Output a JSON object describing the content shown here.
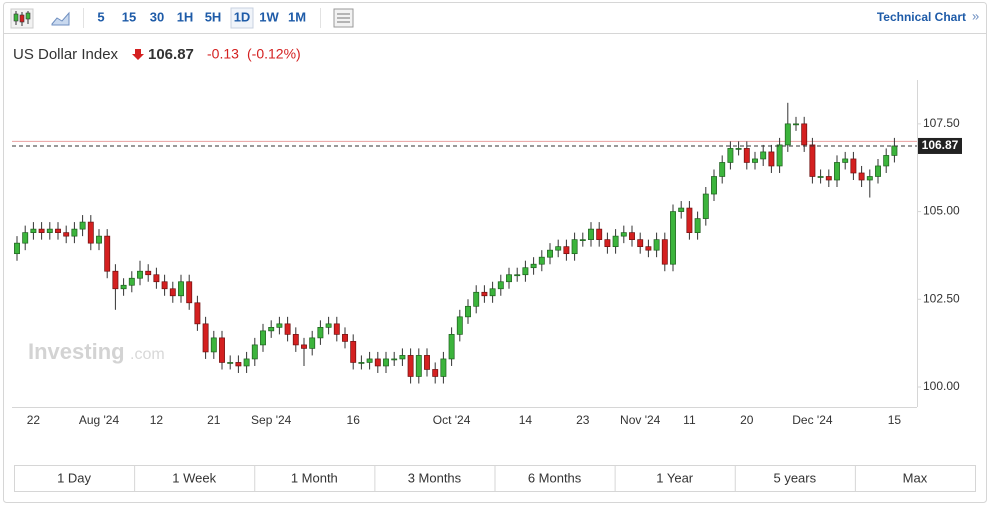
{
  "toolbar": {
    "intervals": [
      "5",
      "15",
      "30",
      "1H",
      "5H",
      "1D",
      "1W",
      "1M"
    ],
    "active": "1D",
    "link": "Technical Chart",
    "link_arrow": "»"
  },
  "quote": {
    "name": "US Dollar Index",
    "price": "106.87",
    "change": "-0.13",
    "change_pct": "(-0.12%)"
  },
  "watermark": {
    "brand": "Investing",
    "suffix": ".com"
  },
  "ranges": [
    "1 Day",
    "1 Week",
    "1 Month",
    "3 Months",
    "6 Months",
    "1 Year",
    "5 years",
    "Max"
  ],
  "chart_data": {
    "type": "candlestick",
    "up_color": "#3cb43c",
    "down_color": "#d42020",
    "last_price": 106.87,
    "reference_line": 107.0,
    "reference_color": "#e8a0a0",
    "ylim": [
      99.43,
      108.75
    ],
    "yticks": [
      {
        "value": 100,
        "label": "100.00"
      },
      {
        "value": 102.5,
        "label": "102.50"
      },
      {
        "value": 105,
        "label": "105.00"
      },
      {
        "value": 107.5,
        "label": "107.50"
      }
    ],
    "categories": [
      null,
      null,
      "22",
      null,
      null,
      null,
      null,
      null,
      null,
      null,
      "Aug '24",
      null,
      null,
      null,
      null,
      null,
      null,
      "12",
      null,
      null,
      null,
      null,
      null,
      null,
      "21",
      null,
      null,
      null,
      null,
      null,
      null,
      "Sep '24",
      null,
      null,
      null,
      null,
      null,
      null,
      null,
      null,
      null,
      "16",
      null,
      null,
      null,
      null,
      null,
      null,
      null,
      null,
      null,
      null,
      null,
      "Oct '24",
      null,
      null,
      null,
      null,
      null,
      null,
      null,
      null,
      "14",
      null,
      null,
      null,
      null,
      null,
      null,
      "23",
      null,
      null,
      null,
      null,
      null,
      null,
      "Nov '24",
      null,
      null,
      null,
      null,
      null,
      "11",
      null,
      null,
      null,
      null,
      null,
      null,
      "20",
      null,
      null,
      null,
      null,
      null,
      null,
      null,
      "Dec '24",
      null,
      null,
      null,
      null,
      null,
      null,
      null,
      null,
      null,
      "15"
    ],
    "open": [
      103.8,
      104.1,
      104.4,
      104.5,
      104.4,
      104.5,
      104.4,
      104.3,
      104.5,
      104.7,
      104.1,
      104.3,
      103.3,
      102.8,
      102.9,
      103.1,
      103.3,
      103.2,
      103.0,
      102.8,
      102.6,
      103.0,
      102.4,
      101.8,
      101.0,
      101.4,
      100.7,
      100.7,
      100.6,
      100.8,
      101.2,
      101.6,
      101.7,
      101.8,
      101.5,
      101.2,
      101.1,
      101.4,
      101.7,
      101.8,
      101.5,
      101.3,
      100.7,
      100.7,
      100.8,
      100.6,
      100.8,
      100.8,
      100.9,
      100.3,
      100.9,
      100.5,
      100.3,
      100.8,
      101.5,
      102.0,
      102.3,
      102.7,
      102.6,
      102.8,
      103.0,
      103.2,
      103.2,
      103.4,
      103.5,
      103.7,
      103.9,
      104.0,
      103.8,
      104.2,
      104.2,
      104.5,
      104.2,
      104.0,
      104.3,
      104.4,
      104.2,
      104.0,
      103.9,
      104.2,
      103.5,
      105.0,
      105.1,
      104.4,
      104.8,
      105.5,
      106.0,
      106.4,
      106.8,
      106.8,
      106.4,
      106.5,
      106.7,
      106.3,
      106.9,
      107.5,
      107.5,
      106.9,
      106.0,
      106.0,
      105.9,
      106.4,
      106.5,
      106.1,
      105.9,
      106.0,
      106.3,
      106.6
    ],
    "high": [
      104.3,
      104.6,
      104.7,
      104.7,
      104.7,
      104.7,
      104.6,
      104.7,
      104.9,
      104.9,
      104.5,
      104.5,
      103.5,
      103.1,
      103.3,
      103.6,
      103.5,
      103.4,
      103.2,
      103.0,
      103.2,
      103.2,
      102.6,
      102.0,
      101.6,
      101.6,
      100.9,
      100.9,
      101.0,
      101.4,
      101.8,
      101.9,
      102.0,
      102.0,
      101.7,
      101.4,
      101.6,
      101.9,
      102.0,
      102.0,
      101.7,
      101.5,
      100.9,
      101.0,
      101.0,
      101.0,
      101.0,
      101.1,
      101.1,
      101.1,
      101.1,
      100.7,
      101.0,
      101.7,
      102.2,
      102.5,
      102.9,
      102.9,
      103.0,
      103.2,
      103.4,
      103.4,
      103.6,
      103.7,
      103.9,
      104.1,
      104.2,
      104.2,
      104.4,
      104.4,
      104.7,
      104.7,
      104.4,
      104.5,
      104.6,
      104.6,
      104.4,
      104.2,
      104.4,
      104.4,
      105.2,
      105.3,
      105.3,
      105.0,
      105.7,
      106.2,
      106.6,
      107.0,
      107.0,
      107.0,
      106.7,
      106.9,
      106.9,
      107.1,
      108.1,
      107.7,
      107.7,
      107.1,
      106.2,
      106.2,
      106.6,
      106.7,
      106.7,
      106.3,
      106.2,
      106.5,
      106.8,
      107.1
    ],
    "low": [
      103.6,
      103.9,
      104.2,
      104.2,
      104.2,
      104.2,
      104.1,
      104.1,
      104.3,
      103.9,
      103.9,
      103.1,
      102.2,
      102.6,
      102.7,
      102.9,
      103.0,
      102.8,
      102.6,
      102.4,
      102.4,
      102.2,
      101.6,
      100.8,
      100.8,
      100.5,
      100.5,
      100.4,
      100.4,
      100.6,
      101.0,
      101.4,
      101.5,
      101.3,
      101.0,
      100.6,
      100.9,
      101.2,
      101.5,
      101.3,
      101.1,
      100.5,
      100.5,
      100.5,
      100.4,
      100.4,
      100.6,
      100.6,
      100.1,
      100.1,
      100.3,
      100.1,
      100.1,
      100.6,
      101.3,
      101.8,
      102.1,
      102.4,
      102.4,
      102.6,
      102.8,
      103.0,
      103.0,
      103.2,
      103.3,
      103.5,
      103.7,
      103.6,
      103.6,
      104.0,
      104.0,
      104.0,
      103.8,
      103.8,
      104.1,
      104.0,
      103.8,
      103.7,
      103.7,
      103.3,
      103.3,
      104.8,
      104.2,
      104.2,
      104.6,
      105.3,
      105.8,
      106.2,
      106.6,
      106.2,
      106.2,
      106.3,
      106.1,
      106.1,
      106.7,
      107.3,
      106.7,
      105.8,
      105.8,
      105.7,
      105.7,
      106.2,
      105.9,
      105.7,
      105.4,
      105.8,
      106.1,
      106.4
    ],
    "close": [
      104.1,
      104.4,
      104.5,
      104.4,
      104.5,
      104.4,
      104.3,
      104.5,
      104.7,
      104.1,
      104.3,
      103.3,
      102.8,
      102.9,
      103.1,
      103.3,
      103.2,
      103.0,
      102.8,
      102.6,
      103.0,
      102.4,
      101.8,
      101.0,
      101.4,
      100.7,
      100.7,
      100.6,
      100.8,
      101.2,
      101.6,
      101.7,
      101.8,
      101.5,
      101.2,
      101.1,
      101.4,
      101.7,
      101.8,
      101.5,
      101.3,
      100.7,
      100.7,
      100.8,
      100.6,
      100.8,
      100.8,
      100.9,
      100.3,
      100.9,
      100.5,
      100.3,
      100.8,
      101.5,
      102.0,
      102.3,
      102.7,
      102.6,
      102.8,
      103.0,
      103.2,
      103.2,
      103.4,
      103.5,
      103.7,
      103.9,
      104.0,
      103.8,
      104.2,
      104.2,
      104.5,
      104.2,
      104.0,
      104.3,
      104.4,
      104.2,
      104.0,
      103.9,
      104.2,
      103.5,
      105.0,
      105.1,
      104.4,
      104.8,
      105.5,
      106.0,
      106.4,
      106.8,
      106.8,
      106.4,
      106.5,
      106.7,
      106.3,
      106.9,
      107.5,
      107.5,
      106.9,
      106.0,
      106.0,
      105.9,
      106.4,
      106.5,
      106.1,
      105.9,
      106.0,
      106.3,
      106.6,
      106.87
    ]
  }
}
